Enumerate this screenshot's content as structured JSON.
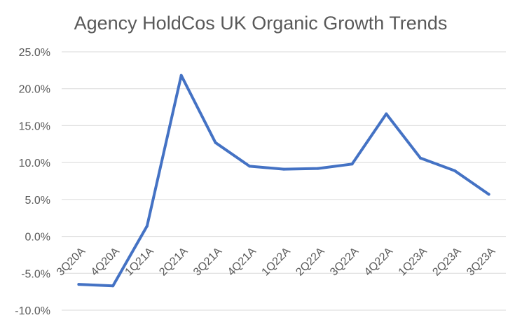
{
  "chart_data": {
    "type": "line",
    "title": "Agency HoldCos UK Organic Growth Trends",
    "xlabel": "",
    "ylabel": "",
    "categories": [
      "3Q20A",
      "4Q20A",
      "1Q21A",
      "2Q21A",
      "3Q21A",
      "4Q21A",
      "1Q22A",
      "2Q22A",
      "3Q22A",
      "4Q22A",
      "1Q23A",
      "2Q23A",
      "3Q23A"
    ],
    "series": [
      {
        "values": [
          -6.5,
          -6.7,
          1.4,
          21.8,
          12.7,
          9.5,
          9.1,
          9.2,
          9.8,
          16.6,
          10.6,
          8.9,
          5.7
        ]
      }
    ],
    "ylim": [
      -10,
      25
    ],
    "y_ticks": [
      "-10.0%",
      "-5.0%",
      "0.0%",
      "5.0%",
      "10.0%",
      "15.0%",
      "20.0%",
      "25.0%"
    ],
    "y_tick_values": [
      -10,
      -5,
      0,
      5,
      10,
      15,
      20,
      25
    ],
    "grid": true,
    "legend": "none",
    "colors": {
      "series": "#4472c4",
      "grid": "#d9d9d9",
      "text": "#595959"
    }
  }
}
